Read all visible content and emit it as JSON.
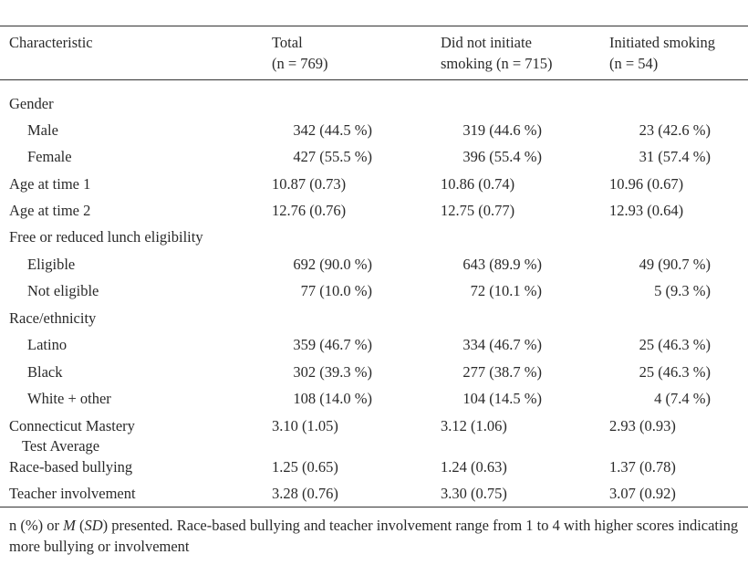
{
  "header": {
    "col0": "Characteristic",
    "col1_line1": "Total",
    "col1_line2": "(n = 769)",
    "col2_line1": "Did not initiate",
    "col2_line2": "smoking (n = 715)",
    "col3_line1": "Initiated smoking",
    "col3_line2": "(n = 54)"
  },
  "rows": [
    {
      "label": "Gender",
      "total": "",
      "not_init": "",
      "init": ""
    },
    {
      "label": "Male",
      "total": "342 (44.5 %)",
      "not_init": "319 (44.6 %)",
      "init": "23 (42.6 %)"
    },
    {
      "label": "Female",
      "total": "427 (55.5 %)",
      "not_init": "396 (55.4 %)",
      "init": "31 (57.4 %)"
    },
    {
      "label": "Age at time 1",
      "total": "10.87 (0.73)",
      "not_init": "10.86 (0.74)",
      "init": "10.96 (0.67)"
    },
    {
      "label": "Age at time 2",
      "total": "12.76 (0.76)",
      "not_init": "12.75 (0.77)",
      "init": "12.93 (0.64)"
    },
    {
      "label": "Free or reduced lunch eligibility",
      "total": "",
      "not_init": "",
      "init": ""
    },
    {
      "label": "Eligible",
      "total": "692 (90.0 %)",
      "not_init": "643 (89.9 %)",
      "init": "49 (90.7 %)"
    },
    {
      "label": "Not eligible",
      "total": "77 (10.0 %)",
      "not_init": "72 (10.1 %)",
      "init": "5 (9.3 %)"
    },
    {
      "label": "Race/ethnicity",
      "total": "",
      "not_init": "",
      "init": ""
    },
    {
      "label": "Latino",
      "total": "359 (46.7 %)",
      "not_init": "334 (46.7 %)",
      "init": "25 (46.3 %)"
    },
    {
      "label": "Black",
      "total": "302 (39.3 %)",
      "not_init": "277 (38.7 %)",
      "init": "25 (46.3 %)"
    },
    {
      "label": "White + other",
      "total": "108 (14.0 %)",
      "not_init": "104 (14.5 %)",
      "init": "4 (7.4 %)"
    },
    {
      "label": "Connecticut Mastery",
      "label_line2": "Test Average",
      "total": "3.10 (1.05)",
      "not_init": "3.12 (1.06)",
      "init": "2.93 (0.93)"
    },
    {
      "label": "Race-based bullying",
      "total": "1.25 (0.65)",
      "not_init": "1.24 (0.63)",
      "init": "1.37 (0.78)"
    },
    {
      "label": "Teacher involvement",
      "total": "3.28 (0.76)",
      "not_init": "3.30 (0.75)",
      "init": "3.07 (0.92)"
    }
  ],
  "footnote": {
    "part1": "n (%) or ",
    "M": "M",
    "part2": " (",
    "SD": "SD",
    "part3": ") presented. Race-based bullying and teacher involvement range from 1 to 4 with higher scores indicating more bullying or involvement"
  }
}
